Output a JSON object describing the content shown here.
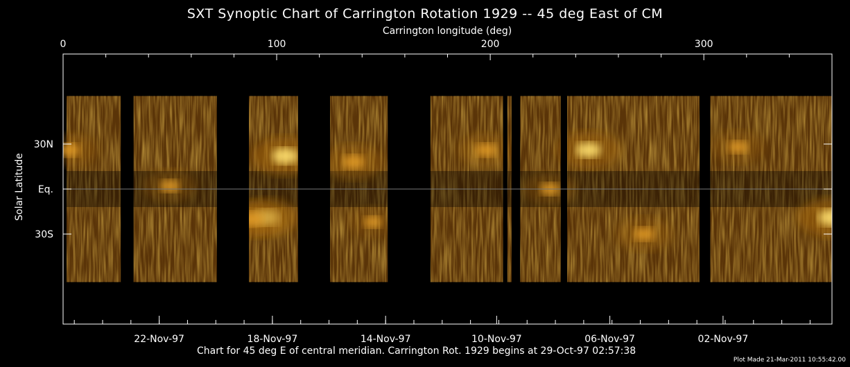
{
  "chart_data": {
    "type": "heatmap",
    "title": "SXT Synoptic Chart of Carrington Rotation 1929 -- 45 deg East of CM",
    "xlabel_top": "Carrington longitude (deg)",
    "ylabel": "Solar Latitude",
    "xlabel_bottom": "Chart for 45 deg E of central meridian.  Carrington Rot. 1929 begins at 29-Oct-97 02:57:38",
    "footer": "Plot Made 21-Mar-2011 10:55:42.00",
    "top_ticks": [
      {
        "label": "0",
        "value": 0
      },
      {
        "label": "100",
        "value": 100
      },
      {
        "label": "200",
        "value": 200
      },
      {
        "label": "300",
        "value": 300
      }
    ],
    "xlim": [
      0,
      360
    ],
    "y_ticks": [
      {
        "label": "30N",
        "value": 30
      },
      {
        "label": "Eq.",
        "value": 0
      },
      {
        "label": "30S",
        "value": -30
      }
    ],
    "ylim": [
      -90,
      90
    ],
    "bottom_ticks": [
      {
        "label": "22-Nov-97",
        "value": 45
      },
      {
        "label": "18-Nov-97",
        "value": 98
      },
      {
        "label": "14-Nov-97",
        "value": 151
      },
      {
        "label": "10-Nov-97",
        "value": 203
      },
      {
        "label": "06-Nov-97",
        "value": 256
      },
      {
        "label": "02-Nov-97",
        "value": 309
      }
    ],
    "data_gaps_longitude": [
      [
        27,
        33
      ],
      [
        72,
        87
      ],
      [
        110,
        125
      ],
      [
        152,
        172
      ],
      [
        206,
        208
      ],
      [
        210,
        214
      ],
      [
        233,
        236
      ],
      [
        298,
        303
      ]
    ],
    "bright_regions": [
      {
        "lon": 104,
        "lat": 22,
        "intensity": 0.95
      },
      {
        "lon": 95,
        "lat": -19,
        "intensity": 0.9
      },
      {
        "lon": 88,
        "lat": -20,
        "intensity": 0.8
      },
      {
        "lon": 136,
        "lat": 18,
        "intensity": 0.7
      },
      {
        "lon": 246,
        "lat": 26,
        "intensity": 0.85
      },
      {
        "lon": 198,
        "lat": 26,
        "intensity": 0.6
      },
      {
        "lon": 360,
        "lat": -19,
        "intensity": 1.0
      },
      {
        "lon": 3,
        "lat": 26,
        "intensity": 0.6
      },
      {
        "lon": 272,
        "lat": -30,
        "intensity": 0.6
      },
      {
        "lon": 50,
        "lat": 2,
        "intensity": 0.5
      },
      {
        "lon": 228,
        "lat": 0,
        "intensity": 0.5
      },
      {
        "lon": 316,
        "lat": 28,
        "intensity": 0.5
      },
      {
        "lon": 145,
        "lat": -22,
        "intensity": 0.4
      }
    ],
    "colormap": [
      "#000000",
      "#5a3408",
      "#a86a10",
      "#e09a28",
      "#ffe070"
    ]
  }
}
